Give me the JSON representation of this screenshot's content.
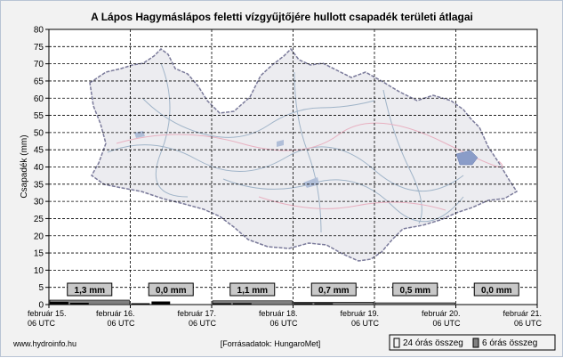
{
  "chart_data": {
    "type": "bar",
    "title": "A Lápos Hagymáslápos feletti vízgyűjtőjére hullott csapadék területi átlagai",
    "ylabel": "Csapadék (mm)",
    "xlabel": "",
    "ylim": [
      0,
      80
    ],
    "y_ticks": [
      0,
      5,
      10,
      15,
      20,
      25,
      30,
      35,
      40,
      45,
      50,
      55,
      60,
      65,
      70,
      75,
      80
    ],
    "x_ticks": [
      {
        "date": "február 15.",
        "time": "06 UTC"
      },
      {
        "date": "február 16.",
        "time": "06 UTC"
      },
      {
        "date": "február 17.",
        "time": "06 UTC"
      },
      {
        "date": "február 18.",
        "time": "06 UTC"
      },
      {
        "date": "február 19.",
        "time": "06 UTC"
      },
      {
        "date": "február 20.",
        "time": "06 UTC"
      },
      {
        "date": "február 21.",
        "time": "06 UTC"
      }
    ],
    "grid": true,
    "daily_totals": [
      "1,3 mm",
      "0,0 mm",
      "1,1 mm",
      "0,7 mm",
      "0,5 mm",
      "0,0 mm"
    ],
    "series": [
      {
        "name": "24 órás összeg",
        "values": [
          1.3,
          0.0,
          1.1,
          0.7,
          0.5,
          0.0
        ]
      },
      {
        "name": "6 órás összeg",
        "values": [
          0.8,
          0.5,
          0,
          0,
          0.2,
          0.9,
          0,
          0,
          0.3,
          0.4,
          0,
          0,
          0.2,
          0.3,
          0,
          0,
          0,
          0,
          0,
          0,
          0,
          0,
          0,
          0
        ]
      }
    ],
    "legend_position": "bottom-right"
  },
  "footer": {
    "website": "www.hydroinfo.hu",
    "source": "[Forrásadatok: HungaroMet]",
    "legend_daily": "24 órás összeg",
    "legend_six_hour": "6 órás összeg"
  },
  "colors": {
    "background": "#f2f2f2",
    "plot_background": "#ffffff",
    "daily_bar": "#808080",
    "six_hour_bar": "#000000",
    "label_box": "#c8c8c8",
    "map_outline": "#7a7a9a",
    "map_fill": "#ececf0",
    "river": "#a0b4c8",
    "road": "#e8b0c0",
    "lake": "#8a9cc8"
  }
}
